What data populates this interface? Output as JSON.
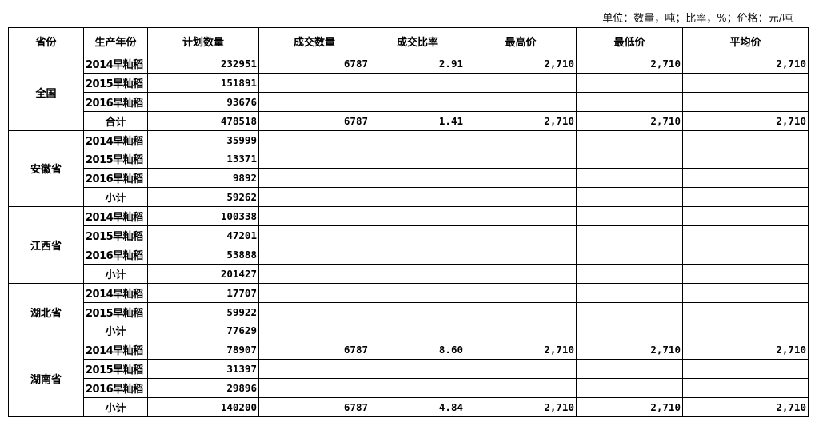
{
  "unit_note": "单位：数量，吨；比率，%；价格：元/吨",
  "headers": [
    "省份",
    "生产年份",
    "计划数量",
    "成交数量",
    "成交比率",
    "最高价",
    "最低价",
    "平均价"
  ],
  "groups": [
    {
      "province": "全国",
      "rows": [
        [
          "2014早籼稻",
          "232951",
          "6787",
          "2.91",
          "2,710",
          "2,710",
          "2,710"
        ],
        [
          "2015早籼稻",
          "151891",
          "",
          "",
          "",
          "",
          ""
        ],
        [
          "2016早籼稻",
          "93676",
          "",
          "",
          "",
          "",
          ""
        ],
        [
          "合计",
          "478518",
          "6787",
          "1.41",
          "2,710",
          "2,710",
          "2,710"
        ]
      ]
    },
    {
      "province": "安徽省",
      "rows": [
        [
          "2014早籼稻",
          "35999",
          "",
          "",
          "",
          "",
          ""
        ],
        [
          "2015早籼稻",
          "13371",
          "",
          "",
          "",
          "",
          ""
        ],
        [
          "2016早籼稻",
          "9892",
          "",
          "",
          "",
          "",
          ""
        ],
        [
          "小计",
          "59262",
          "",
          "",
          "",
          "",
          ""
        ]
      ]
    },
    {
      "province": "江西省",
      "rows": [
        [
          "2014早籼稻",
          "100338",
          "",
          "",
          "",
          "",
          ""
        ],
        [
          "2015早籼稻",
          "47201",
          "",
          "",
          "",
          "",
          ""
        ],
        [
          "2016早籼稻",
          "53888",
          "",
          "",
          "",
          "",
          ""
        ],
        [
          "小计",
          "201427",
          "",
          "",
          "",
          "",
          ""
        ]
      ]
    },
    {
      "province": "湖北省",
      "rows": [
        [
          "2014早籼稻",
          "17707",
          "",
          "",
          "",
          "",
          ""
        ],
        [
          "2015早籼稻",
          "59922",
          "",
          "",
          "",
          "",
          ""
        ],
        [
          "小计",
          "77629",
          "",
          "",
          "",
          "",
          ""
        ]
      ]
    },
    {
      "province": "湖南省",
      "rows": [
        [
          "2014早籼稻",
          "78907",
          "6787",
          "8.60",
          "2,710",
          "2,710",
          "2,710"
        ],
        [
          "2015早籼稻",
          "31397",
          "",
          "",
          "",
          "",
          ""
        ],
        [
          "2016早籼稻",
          "29896",
          "",
          "",
          "",
          "",
          ""
        ],
        [
          "小计",
          "140200",
          "6787",
          "4.84",
          "2,710",
          "2,710",
          "2,710"
        ]
      ]
    }
  ]
}
